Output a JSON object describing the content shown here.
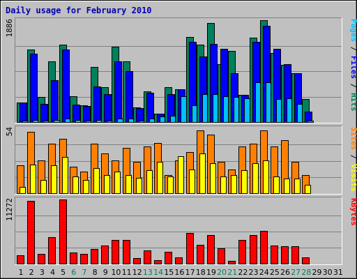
{
  "chart_data": {
    "type": "bar",
    "title": "Daily usage for February 2010",
    "categories": [
      "1",
      "2",
      "3",
      "4",
      "5",
      "6",
      "7",
      "8",
      "9",
      "10",
      "11",
      "12",
      "13",
      "14",
      "15",
      "16",
      "17",
      "18",
      "19",
      "20",
      "21",
      "22",
      "23",
      "24",
      "25",
      "26",
      "27",
      "28",
      "29",
      "30",
      "31"
    ],
    "weekend_days": [
      "6",
      "7",
      "13",
      "14",
      "20",
      "21",
      "27",
      "28"
    ],
    "colors": {
      "hits": "#00805c",
      "files": "#0000ff",
      "pages": "#00c0ff",
      "visits": "#ffff00",
      "sites": "#ff8000",
      "kbytes": "#ff0000",
      "weekday_label": "#000000",
      "weekend_label": "#00805c",
      "title": "#0000b0"
    },
    "panels": [
      {
        "id": "hits-files-pages",
        "ymax_label": "1886",
        "ymax": 1886,
        "right_label": [
          {
            "text": "Pages",
            "color": "#00c0ff"
          },
          {
            "text": " / ",
            "color": "#000000"
          },
          {
            "text": "Files",
            "color": "#0000ff"
          },
          {
            "text": " / ",
            "color": "#000000"
          },
          {
            "text": "Hits",
            "color": "#00805c"
          }
        ],
        "series": [
          {
            "name": "Hits",
            "color": "#00805c",
            "values": [
              360,
              1340,
              470,
              1120,
              1440,
              480,
              310,
              1020,
              650,
              1390,
              1120,
              270,
              570,
              150,
              640,
              610,
              1580,
              1430,
              1840,
              1070,
              1320,
              510,
              1560,
              1880,
              1280,
              1060,
              900,
              430,
              0,
              0,
              0
            ]
          },
          {
            "name": "Files",
            "color": "#0000ff",
            "values": [
              360,
              1270,
              330,
              780,
              1340,
              320,
              300,
              660,
              520,
              1130,
              940,
              260,
              540,
              150,
              520,
              610,
              1490,
              1220,
              1450,
              1350,
              910,
              500,
              1490,
              1780,
              1350,
              1070,
              900,
              200,
              0,
              0,
              0
            ]
          },
          {
            "name": "Pages",
            "color": "#00c0ff",
            "values": [
              20,
              40,
              20,
              40,
              60,
              40,
              20,
              40,
              30,
              60,
              60,
              30,
              60,
              100,
              120,
              480,
              310,
              520,
              520,
              480,
              470,
              440,
              740,
              730,
              420,
              440,
              340,
              30,
              0,
              0,
              0
            ]
          }
        ]
      },
      {
        "id": "visits-sites",
        "ymax_label": "54",
        "ymax": 54,
        "right_label": [
          {
            "text": "Sites",
            "color": "#ff8000"
          },
          {
            "text": " / ",
            "color": "#000000"
          },
          {
            "text": "Visits",
            "color": "#ffff00"
          }
        ],
        "series": [
          {
            "name": "Sites",
            "color": "#ff8000",
            "values": [
              23,
              51,
              27,
              41,
              45,
              22,
              18,
              41,
              33,
              27,
              38,
              26,
              39,
              42,
              15,
              27,
              34,
              52,
              49,
              26,
              20,
              39,
              41,
              52,
              39,
              44,
              26,
              15,
              0,
              0,
              0
            ]
          },
          {
            "name": "Visits",
            "color": "#ffff00",
            "values": [
              5,
              24,
              11,
              23,
              30,
              14,
              11,
              21,
              15,
              18,
              15,
              13,
              19,
              26,
              14,
              31,
              20,
              33,
              25,
              14,
              15,
              19,
              25,
              27,
              14,
              12,
              12,
              7,
              0,
              0,
              0
            ]
          }
        ]
      },
      {
        "id": "kbytes",
        "ymax_label": "11272",
        "ymax": 11272,
        "right_label": [
          {
            "text": "KBytes",
            "color": "#ff0000"
          }
        ],
        "series": [
          {
            "name": "KBytes",
            "color": "#ff0000",
            "values": [
              1470,
              10980,
              1750,
              4620,
              11270,
              1920,
              1750,
              2600,
              3210,
              4120,
              4120,
              940,
              2270,
              650,
              2120,
              1080,
              5400,
              3330,
              4990,
              2690,
              550,
              4120,
              4990,
              5700,
              3140,
              3070,
              3040,
              1070,
              0,
              0,
              0
            ]
          }
        ]
      }
    ]
  }
}
